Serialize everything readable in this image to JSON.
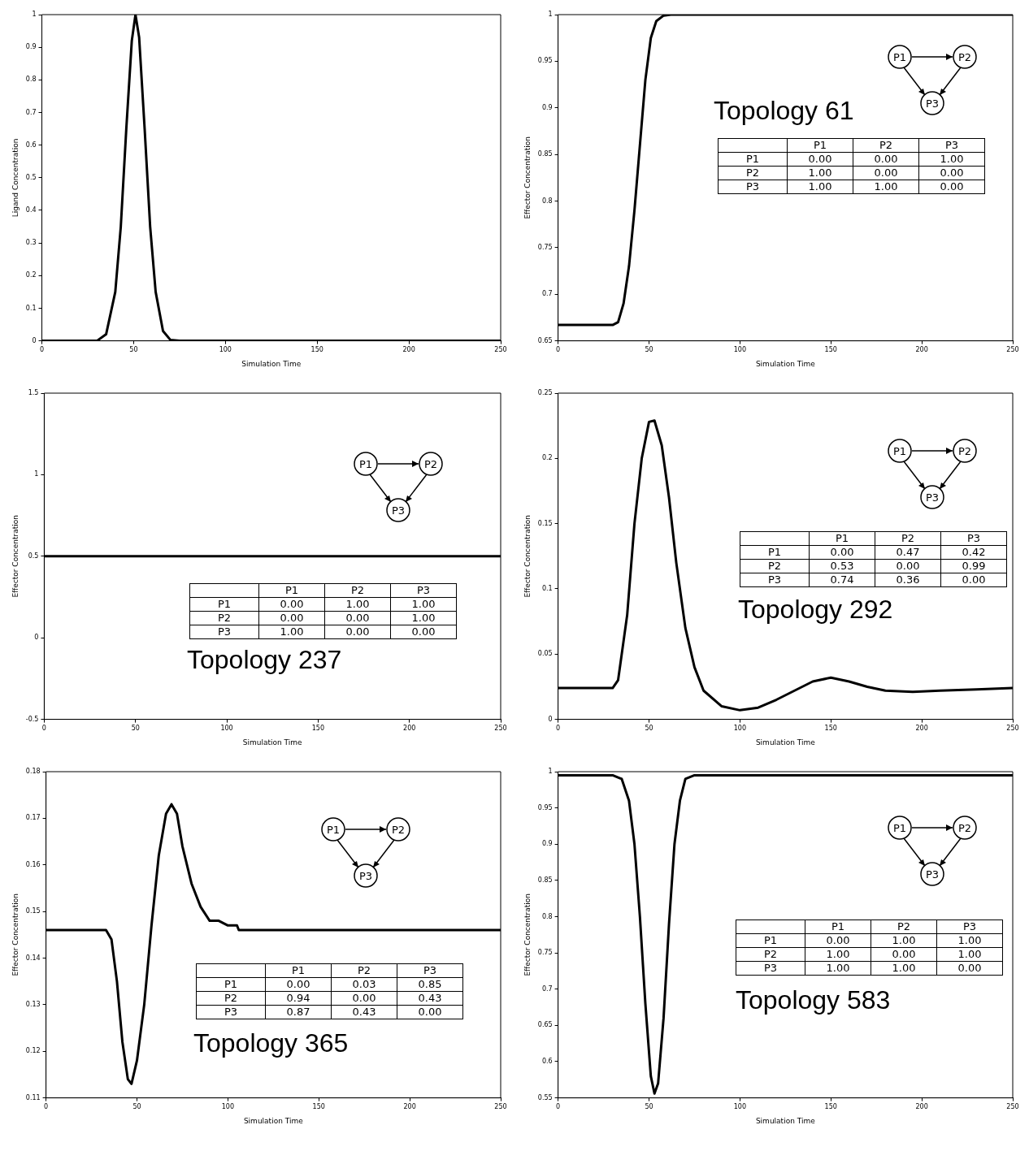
{
  "chart_data": [
    {
      "type": "line",
      "xlabel": "Simulation Time",
      "ylabel": "Ligand Concentration",
      "x": [
        0,
        30,
        35,
        40,
        43,
        46,
        49,
        51,
        53,
        56,
        59,
        62,
        66,
        70,
        75,
        250
      ],
      "series": [
        {
          "color": "#000000",
          "values": [
            0,
            0,
            0.02,
            0.15,
            0.35,
            0.65,
            0.92,
            1.0,
            0.93,
            0.65,
            0.35,
            0.15,
            0.03,
            0.003,
            0,
            0
          ]
        }
      ],
      "xlim": [
        0,
        250
      ],
      "xticks": [
        0,
        50,
        100,
        150,
        200,
        250
      ],
      "ylim": [
        0,
        1
      ],
      "yticks": [
        0,
        0.1,
        0.2,
        0.3,
        0.4,
        0.5,
        0.6,
        0.7,
        0.8,
        0.9,
        1
      ],
      "grid": false,
      "legend": false,
      "marker": "none",
      "line_style": "solid"
    },
    {
      "type": "line",
      "xlabel": "Simulation Time",
      "ylabel": "Effector Concentration",
      "x": [
        0,
        30,
        33,
        36,
        39,
        42,
        45,
        48,
        51,
        54,
        58,
        62,
        250
      ],
      "series": [
        {
          "color": "#000000",
          "values": [
            0.667,
            0.667,
            0.67,
            0.69,
            0.73,
            0.79,
            0.86,
            0.93,
            0.975,
            0.993,
            0.999,
            1,
            1
          ]
        }
      ],
      "xlim": [
        0,
        250
      ],
      "xticks": [
        0,
        50,
        100,
        150,
        200,
        250
      ],
      "ylim": [
        0.65,
        1
      ],
      "yticks": [
        0.65,
        0.7,
        0.75,
        0.8,
        0.85,
        0.9,
        0.95,
        1
      ],
      "grid": false,
      "legend": false,
      "marker": "none",
      "line_style": "solid",
      "annotations": [
        "Topology 61",
        "P1",
        "P2",
        "P3",
        "P1",
        "0.00",
        "0.00",
        "1.00",
        "P2",
        "1.00",
        "0.00",
        "0.00",
        "P3",
        "1.00",
        "1.00",
        "0.00"
      ]
    },
    {
      "type": "line",
      "xlabel": "Simulation Time",
      "ylabel": "Effector Concentration",
      "x": [
        0,
        250
      ],
      "series": [
        {
          "color": "#000000",
          "values": [
            0.5,
            0.5
          ]
        }
      ],
      "xlim": [
        0,
        250
      ],
      "xticks": [
        0,
        50,
        100,
        150,
        200,
        250
      ],
      "ylim": [
        -0.5,
        1.5
      ],
      "yticks": [
        -0.5,
        0,
        0.5,
        1,
        1.5
      ],
      "grid": false,
      "legend": false,
      "marker": "none",
      "line_style": "solid",
      "annotations": [
        "Topology 237",
        "P1",
        "P2",
        "P3",
        "P1",
        "0.00",
        "1.00",
        "1.00",
        "P2",
        "0.00",
        "0.00",
        "1.00",
        "P3",
        "1.00",
        "0.00",
        "0.00"
      ]
    },
    {
      "type": "line",
      "xlabel": "Simulation Time",
      "ylabel": "Effector Concentration",
      "x": [
        0,
        30,
        33,
        38,
        42,
        46,
        50,
        53,
        57,
        61,
        65,
        70,
        75,
        80,
        90,
        100,
        110,
        120,
        130,
        140,
        150,
        160,
        170,
        180,
        195,
        210,
        230,
        250
      ],
      "series": [
        {
          "color": "#000000",
          "values": [
            0.024,
            0.024,
            0.03,
            0.08,
            0.15,
            0.2,
            0.228,
            0.229,
            0.21,
            0.17,
            0.12,
            0.07,
            0.04,
            0.022,
            0.01,
            0.007,
            0.009,
            0.015,
            0.022,
            0.029,
            0.032,
            0.029,
            0.025,
            0.022,
            0.021,
            0.022,
            0.023,
            0.024
          ]
        }
      ],
      "xlim": [
        0,
        250
      ],
      "xticks": [
        0,
        50,
        100,
        150,
        200,
        250
      ],
      "ylim": [
        0,
        0.25
      ],
      "yticks": [
        0,
        0.05,
        0.1,
        0.15,
        0.2,
        0.25
      ],
      "grid": false,
      "legend": false,
      "marker": "none",
      "line_style": "solid",
      "annotations": [
        "Topology 292",
        "P1",
        "P2",
        "P3",
        "P1",
        "0.00",
        "0.47",
        "0.42",
        "P2",
        "0.53",
        "0.00",
        "0.99",
        "P3",
        "0.74",
        "0.36",
        "0.00"
      ]
    },
    {
      "type": "line",
      "xlabel": "Simulation Time",
      "ylabel": "Effector Concentration",
      "x": [
        0,
        33,
        36,
        39,
        42,
        45,
        47,
        50,
        54,
        58,
        62,
        66,
        69,
        72,
        75,
        80,
        85,
        90,
        95,
        100,
        105,
        106,
        250
      ],
      "series": [
        {
          "color": "#000000",
          "values": [
            0.146,
            0.146,
            0.144,
            0.135,
            0.122,
            0.114,
            0.113,
            0.118,
            0.13,
            0.147,
            0.162,
            0.171,
            0.173,
            0.171,
            0.164,
            0.156,
            0.151,
            0.148,
            0.148,
            0.147,
            0.147,
            0.146,
            0.146
          ]
        }
      ],
      "xlim": [
        0,
        250
      ],
      "xticks": [
        0,
        50,
        100,
        150,
        200,
        250
      ],
      "ylim": [
        0.11,
        0.18
      ],
      "yticks": [
        0.11,
        0.12,
        0.13,
        0.14,
        0.15,
        0.16,
        0.17,
        0.18
      ],
      "grid": false,
      "legend": false,
      "marker": "none",
      "line_style": "solid",
      "annotations": [
        "Topology 365",
        "P1",
        "P2",
        "P3",
        "P1",
        "0.00",
        "0.03",
        "0.85",
        "P2",
        "0.94",
        "0.00",
        "0.43",
        "P3",
        "0.87",
        "0.43",
        "0.00"
      ]
    },
    {
      "type": "line",
      "xlabel": "Simulation Time",
      "ylabel": "Effector Concentration",
      "x": [
        0,
        30,
        35,
        39,
        42,
        45,
        48,
        51,
        53,
        55,
        58,
        61,
        64,
        67,
        70,
        75,
        250
      ],
      "series": [
        {
          "color": "#000000",
          "values": [
            0.995,
            0.995,
            0.99,
            0.96,
            0.9,
            0.8,
            0.68,
            0.58,
            0.556,
            0.57,
            0.66,
            0.79,
            0.9,
            0.96,
            0.99,
            0.995,
            0.995
          ]
        }
      ],
      "xlim": [
        0,
        250
      ],
      "xticks": [
        0,
        50,
        100,
        150,
        200,
        250
      ],
      "ylim": [
        0.55,
        1
      ],
      "yticks": [
        0.55,
        0.6,
        0.65,
        0.7,
        0.75,
        0.8,
        0.85,
        0.9,
        0.95,
        1
      ],
      "grid": false,
      "legend": false,
      "marker": "none",
      "line_style": "solid",
      "annotations": [
        "Topology 583",
        "P1",
        "P2",
        "P3",
        "P1",
        "0.00",
        "1.00",
        "1.00",
        "P2",
        "1.00",
        "0.00",
        "1.00",
        "P3",
        "1.00",
        "1.00",
        "0.00"
      ]
    }
  ]
}
